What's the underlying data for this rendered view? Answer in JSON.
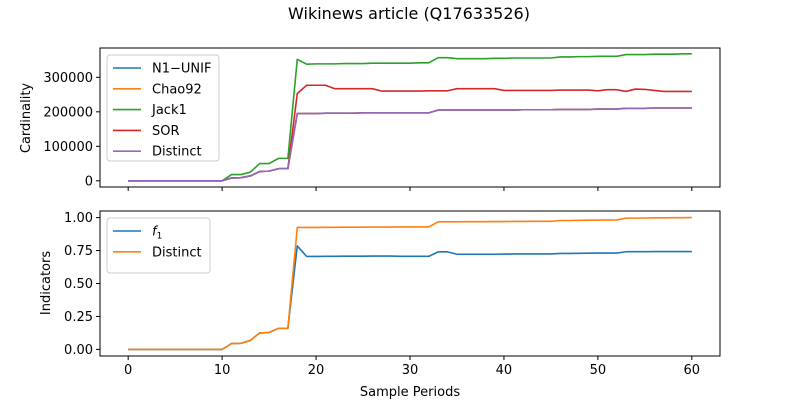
{
  "figure": {
    "title": "Wikinews article (Q17633526)"
  },
  "chart_data": [
    {
      "type": "line",
      "ylabel": "Cardinality",
      "xlabel": "",
      "xlim": [
        -3.0,
        63.0
      ],
      "ylim": [
        -18000,
        385000
      ],
      "yticks": [
        0,
        100000,
        200000,
        300000
      ],
      "ytick_labels": [
        "0",
        "100000",
        "200000",
        "300000"
      ],
      "xticks": [
        0,
        10,
        20,
        30,
        40,
        50,
        60
      ],
      "xtick_labels_visible": false,
      "legend_position": "top-left",
      "x": [
        0,
        1,
        2,
        3,
        4,
        5,
        6,
        7,
        8,
        9,
        10,
        11,
        12,
        13,
        14,
        15,
        16,
        17,
        18,
        19,
        20,
        21,
        22,
        23,
        24,
        25,
        26,
        27,
        28,
        29,
        30,
        31,
        32,
        33,
        34,
        35,
        36,
        37,
        38,
        39,
        40,
        41,
        42,
        43,
        44,
        45,
        46,
        47,
        48,
        49,
        50,
        51,
        52,
        53,
        54,
        55,
        56,
        57,
        58,
        59,
        60
      ],
      "series": [
        {
          "name": "N1−UNIF",
          "color": "#1f77b4",
          "values": [
            0,
            0,
            0,
            0,
            0,
            0,
            0,
            0,
            0,
            0,
            0,
            8000,
            9000,
            14000,
            27000,
            28000,
            35000,
            35000,
            195000,
            195000,
            195000,
            196000,
            196000,
            196000,
            196000,
            197000,
            197000,
            197000,
            197000,
            197000,
            197000,
            197000,
            197000,
            205000,
            205000,
            205000,
            205000,
            205000,
            205000,
            205000,
            205000,
            205000,
            206000,
            206000,
            206000,
            206000,
            207000,
            207000,
            207000,
            207000,
            208000,
            208000,
            208000,
            210000,
            210000,
            210000,
            211000,
            211000,
            211000,
            211000,
            211000
          ]
        },
        {
          "name": "Chao92",
          "color": "#ff7f0e",
          "values": [
            0,
            0,
            0,
            0,
            0,
            0,
            0,
            0,
            0,
            0,
            0,
            8000,
            9000,
            14000,
            27000,
            28000,
            35000,
            35000,
            195000,
            195000,
            195000,
            196000,
            196000,
            196000,
            196000,
            197000,
            197000,
            197000,
            197000,
            197000,
            197000,
            197000,
            197000,
            205000,
            205000,
            205000,
            205000,
            205000,
            205000,
            205000,
            205000,
            205000,
            206000,
            206000,
            206000,
            206000,
            207000,
            207000,
            207000,
            207000,
            208000,
            208000,
            208000,
            210000,
            210000,
            210000,
            211000,
            211000,
            211000,
            211000,
            211000
          ]
        },
        {
          "name": "Jack1",
          "color": "#2ca02c",
          "values": [
            0,
            0,
            0,
            0,
            0,
            0,
            0,
            0,
            0,
            0,
            0,
            18000,
            18000,
            25000,
            50000,
            50000,
            65000,
            65000,
            352000,
            338000,
            339000,
            339000,
            339000,
            340000,
            340000,
            340000,
            341000,
            341000,
            341000,
            341000,
            341000,
            342000,
            342000,
            357000,
            357000,
            354000,
            354000,
            354000,
            354000,
            355000,
            355000,
            356000,
            356000,
            356000,
            356000,
            356000,
            359000,
            359000,
            360000,
            360000,
            361000,
            361000,
            361000,
            366000,
            366000,
            366000,
            367000,
            367000,
            367000,
            368000,
            368000
          ]
        },
        {
          "name": "SOR",
          "color": "#d62728",
          "values": [
            0,
            0,
            0,
            0,
            0,
            0,
            0,
            0,
            0,
            0,
            0,
            8000,
            9000,
            14000,
            27000,
            28000,
            35000,
            35000,
            253000,
            277000,
            277000,
            277000,
            267000,
            267000,
            267000,
            267000,
            267000,
            260000,
            260000,
            260000,
            260000,
            260000,
            261000,
            261000,
            261000,
            267000,
            267000,
            267000,
            267000,
            267000,
            262000,
            262000,
            262000,
            262000,
            262000,
            262000,
            263000,
            263000,
            263000,
            263000,
            261000,
            264000,
            264000,
            259000,
            266000,
            265000,
            262000,
            259000,
            259000,
            259000,
            259000
          ]
        },
        {
          "name": "Distinct",
          "color": "#9467bd",
          "values": [
            0,
            0,
            0,
            0,
            0,
            0,
            0,
            0,
            0,
            0,
            0,
            8000,
            9000,
            14000,
            27000,
            28000,
            35000,
            35000,
            195000,
            195000,
            195000,
            196000,
            196000,
            196000,
            196000,
            197000,
            197000,
            197000,
            197000,
            197000,
            197000,
            197000,
            197000,
            205000,
            205000,
            205000,
            205000,
            205000,
            205000,
            205000,
            205000,
            205000,
            206000,
            206000,
            206000,
            206000,
            207000,
            207000,
            207000,
            207000,
            208000,
            208000,
            208000,
            210000,
            210000,
            210000,
            211000,
            211000,
            211000,
            211000,
            211000
          ]
        }
      ]
    },
    {
      "type": "line",
      "ylabel": "Indicators",
      "xlabel": "Sample Periods",
      "xlim": [
        -3.0,
        63.0
      ],
      "ylim": [
        -0.05,
        1.05
      ],
      "yticks": [
        0.0,
        0.25,
        0.5,
        0.75,
        1.0
      ],
      "ytick_labels": [
        "0.00",
        "0.25",
        "0.50",
        "0.75",
        "1.00"
      ],
      "xticks": [
        0,
        10,
        20,
        30,
        40,
        50,
        60
      ],
      "xtick_labels": [
        "0",
        "10",
        "20",
        "30",
        "40",
        "50",
        "60"
      ],
      "legend_position": "top-left",
      "x": [
        0,
        1,
        2,
        3,
        4,
        5,
        6,
        7,
        8,
        9,
        10,
        11,
        12,
        13,
        14,
        15,
        16,
        17,
        18,
        19,
        20,
        21,
        22,
        23,
        24,
        25,
        26,
        27,
        28,
        29,
        30,
        31,
        32,
        33,
        34,
        35,
        36,
        37,
        38,
        39,
        40,
        41,
        42,
        43,
        44,
        45,
        46,
        47,
        48,
        49,
        50,
        51,
        52,
        53,
        54,
        55,
        56,
        57,
        58,
        59,
        60
      ],
      "series": [
        {
          "name": "f",
          "name_subscript": "1",
          "color": "#1f77b4",
          "values": [
            0,
            0,
            0,
            0,
            0,
            0,
            0,
            0,
            0,
            0,
            0,
            0.044,
            0.046,
            0.068,
            0.125,
            0.128,
            0.16,
            0.16,
            0.785,
            0.705,
            0.705,
            0.706,
            0.706,
            0.707,
            0.707,
            0.707,
            0.708,
            0.708,
            0.708,
            0.706,
            0.706,
            0.706,
            0.706,
            0.74,
            0.74,
            0.722,
            0.722,
            0.722,
            0.722,
            0.722,
            0.723,
            0.724,
            0.724,
            0.724,
            0.724,
            0.724,
            0.728,
            0.728,
            0.729,
            0.73,
            0.731,
            0.731,
            0.731,
            0.741,
            0.741,
            0.741,
            0.742,
            0.742,
            0.742,
            0.742,
            0.742
          ]
        },
        {
          "name": "Distinct",
          "color": "#ff7f0e",
          "values": [
            0,
            0,
            0,
            0,
            0,
            0,
            0,
            0,
            0,
            0,
            0,
            0.044,
            0.046,
            0.068,
            0.125,
            0.128,
            0.16,
            0.16,
            0.925,
            0.925,
            0.925,
            0.926,
            0.926,
            0.927,
            0.927,
            0.927,
            0.928,
            0.928,
            0.928,
            0.929,
            0.929,
            0.929,
            0.929,
            0.968,
            0.968,
            0.968,
            0.969,
            0.969,
            0.969,
            0.97,
            0.97,
            0.971,
            0.971,
            0.972,
            0.972,
            0.972,
            0.978,
            0.978,
            0.979,
            0.98,
            0.981,
            0.981,
            0.982,
            0.996,
            0.996,
            0.997,
            0.998,
            0.998,
            0.999,
            0.999,
            1.0
          ]
        }
      ]
    }
  ]
}
